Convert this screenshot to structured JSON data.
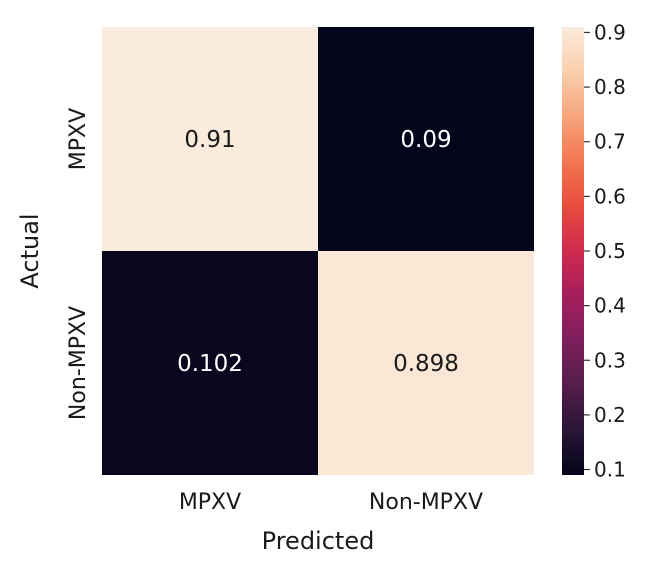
{
  "chart_data": {
    "type": "heatmap",
    "title": "",
    "xlabel": "Predicted",
    "ylabel": "Actual",
    "x_categories": [
      "MPXV",
      "Non-MPXV"
    ],
    "y_categories": [
      "MPXV",
      "Non-MPXV"
    ],
    "values": [
      [
        0.91,
        0.09
      ],
      [
        0.102,
        0.898
      ]
    ],
    "value_labels": [
      [
        "0.91",
        "0.09"
      ],
      [
        "0.102",
        "0.898"
      ]
    ],
    "colorbar": {
      "range": [
        0.09,
        0.91
      ],
      "ticks": [
        0.1,
        0.2,
        0.3,
        0.4,
        0.5,
        0.6,
        0.7,
        0.8,
        0.9
      ],
      "tick_labels": [
        "0.1",
        "0.2",
        "0.3",
        "0.4",
        "0.5",
        "0.6",
        "0.7",
        "0.8",
        "0.9"
      ],
      "colormap": "rocket"
    },
    "colormap_stops": [
      "#03051a",
      "#2a1636",
      "#541d4b",
      "#7e1e5c",
      "#a61e5c",
      "#cf2b4e",
      "#e74c3d",
      "#f37651",
      "#f6a47b",
      "#f9cfac",
      "#faebdd"
    ],
    "grid": false
  }
}
